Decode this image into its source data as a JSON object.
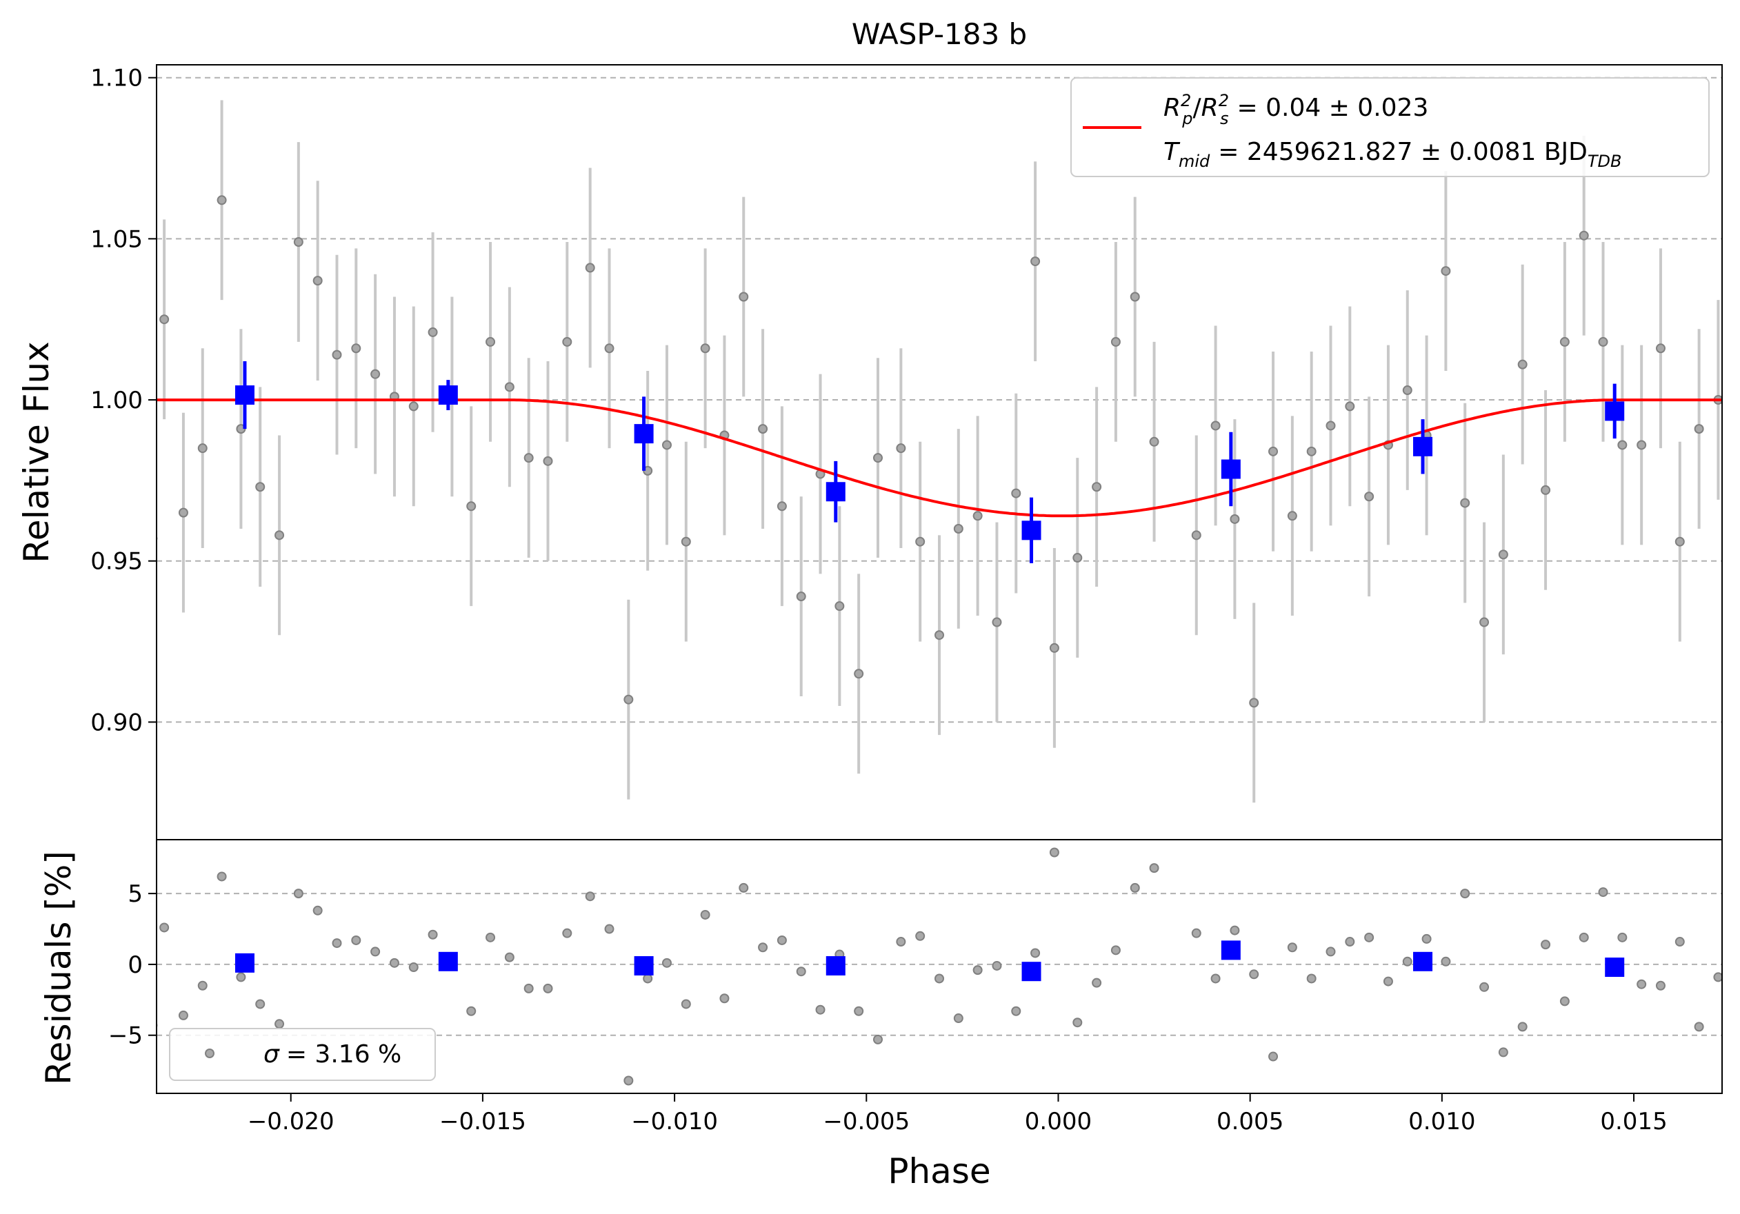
{
  "title": "WASP-183 b",
  "colors": {
    "raw_points": "#808080",
    "raw_errorbars": "#c8c8c8",
    "binned": "#0000ff",
    "model": "#ff0000",
    "grid": "#b0b0b0"
  },
  "chart_data": [
    {
      "type": "scatter",
      "panel": "top",
      "title": "WASP-183 b",
      "xlabel": "",
      "ylabel": "Relative Flux",
      "xlim": [
        -0.0235,
        0.0173
      ],
      "ylim": [
        0.8635,
        1.104
      ],
      "yticks": [
        0.9,
        0.95,
        1.0,
        1.05,
        1.1
      ],
      "ytick_labels": [
        "0.90",
        "0.95",
        "1.00",
        "1.05",
        "1.10"
      ],
      "grid": "y dashed",
      "legend": {
        "placement": "top-right",
        "line1_main": "R",
        "line1_p": "p",
        "line1_s": "s",
        "line1_sup": "2",
        "line1_value": "= 0.04 ± 0.023",
        "line2_main": "T",
        "line2_sub": "mid",
        "line2_value": "= 2459621.827 ± 0.0081 BJD",
        "line2_unit_sub": "TDB"
      },
      "series": [
        {
          "kind": "raw",
          "x": [
            -0.0236,
            -0.0233,
            -0.0228,
            -0.0223,
            -0.0218,
            -0.0213,
            -0.0208,
            -0.0203,
            -0.0198,
            -0.0193,
            -0.0188,
            -0.0183,
            -0.0178,
            -0.0173,
            -0.0168,
            -0.0163,
            -0.0158,
            -0.0153,
            -0.0148,
            -0.0143,
            -0.0138,
            -0.0133,
            -0.0128,
            -0.0122,
            -0.0117,
            -0.0112,
            -0.0107,
            -0.0102,
            -0.0097,
            -0.0092,
            -0.0087,
            -0.0082,
            -0.0077,
            -0.0072,
            -0.0067,
            -0.0062,
            -0.0057,
            -0.0052,
            -0.0047,
            -0.0041,
            -0.0036,
            -0.0031,
            -0.0026,
            -0.0021,
            -0.0016,
            -0.0011,
            -0.0006,
            -0.0001,
            0.0005,
            0.001,
            0.0015,
            0.002,
            0.0025,
            0.0036,
            0.0041,
            0.0046,
            0.0051,
            0.0056,
            0.0061,
            0.0066,
            0.0071,
            0.0076,
            0.0081,
            0.0086,
            0.0091,
            0.0096,
            0.0101,
            0.0106,
            0.0111,
            0.0116,
            0.0121,
            0.0127,
            0.0132,
            0.0137,
            0.0142,
            0.0147,
            0.0152,
            0.0157,
            0.0162,
            0.0167,
            0.0172
          ],
          "y": [
            0.957,
            1.025,
            0.965,
            0.985,
            1.062,
            0.991,
            0.973,
            0.958,
            1.049,
            1.037,
            1.014,
            1.016,
            1.008,
            1.001,
            0.998,
            1.021,
            1.001,
            0.967,
            1.018,
            1.004,
            0.982,
            0.981,
            1.018,
            1.041,
            1.016,
            0.907,
            0.978,
            0.986,
            0.956,
            1.016,
            0.989,
            1.032,
            0.991,
            0.967,
            0.939,
            0.977,
            0.936,
            0.915,
            0.982,
            0.985,
            0.956,
            0.927,
            0.96,
            0.964,
            0.931,
            0.971,
            1.043,
            0.923,
            0.951,
            0.973,
            1.018,
            1.032,
            0.987,
            0.958,
            0.992,
            0.963,
            0.906,
            0.984,
            0.964,
            0.984,
            0.992,
            0.998,
            0.97,
            0.986,
            1.003,
            0.989,
            1.04,
            0.968,
            0.931,
            0.952,
            1.011,
            0.972,
            1.018,
            1.051,
            1.018,
            0.986,
            0.986,
            1.016,
            0.956,
            0.991,
            1.0
          ],
          "err": 0.031
        },
        {
          "kind": "binned",
          "x": [
            -0.0212,
            -0.0159,
            -0.0108,
            -0.0058,
            -0.0007,
            0.0045,
            0.0095,
            0.0145
          ],
          "y": [
            1.0015,
            1.0015,
            0.9895,
            0.9715,
            0.9595,
            0.9785,
            0.9855,
            0.9965
          ],
          "err": [
            0.0105,
            0.0047,
            0.0115,
            0.0095,
            0.0102,
            0.0115,
            0.0085,
            0.0085
          ]
        },
        {
          "kind": "model",
          "name": "transit model",
          "depth": 0.036,
          "center": 0.0001,
          "half_width": 0.0145
        }
      ]
    },
    {
      "type": "scatter",
      "panel": "bottom",
      "xlabel": "Phase",
      "ylabel": "Residuals [%]",
      "xlim": [
        -0.0235,
        0.0173
      ],
      "ylim": [
        -9.1,
        8.8
      ],
      "yticks": [
        -5,
        0,
        5
      ],
      "ytick_labels": [
        "−5",
        "0",
        "5"
      ],
      "xticks": [
        -0.02,
        -0.015,
        -0.01,
        -0.005,
        0.0,
        0.005,
        0.01,
        0.015
      ],
      "xtick_labels": [
        "−0.020",
        "−0.015",
        "−0.010",
        "−0.005",
        "0.000",
        "0.005",
        "0.010",
        "0.015"
      ],
      "grid": "y dashed",
      "legend": {
        "placement": "bottom-left",
        "sigma_symbol": "σ",
        "sigma_value": "= 3.16 %"
      },
      "series": [
        {
          "kind": "raw_residuals",
          "y": [
            -4.3,
            2.6,
            -3.6,
            -1.5,
            6.2,
            -0.9,
            -2.8,
            -4.2,
            5.0,
            3.8,
            1.5,
            1.7,
            0.9,
            0.1,
            -0.2,
            2.1,
            0.1,
            -3.3,
            1.9,
            0.5,
            -1.7,
            -1.7,
            2.2,
            4.8,
            2.5,
            -8.2,
            -1.0,
            0.1,
            -2.8,
            3.5,
            -2.4,
            5.4,
            1.2,
            1.7,
            -0.5,
            -3.2,
            0.7,
            -3.3,
            -5.3,
            1.6,
            2.0,
            -1.0,
            -3.8,
            -0.4,
            -0.1,
            -3.3,
            0.8,
            7.9,
            -4.1,
            -1.3,
            1.0,
            5.4,
            6.8,
            2.2,
            -1.0,
            2.4,
            -0.7,
            -6.5,
            1.2,
            -1.0,
            0.9,
            1.6,
            1.9,
            -1.2,
            0.2,
            1.8,
            0.2,
            5.0,
            -1.6,
            -6.2,
            -4.4,
            1.4,
            -2.6,
            1.9,
            5.1,
            1.9,
            -1.4,
            -1.5,
            1.6,
            -4.4,
            -0.9
          ]
        },
        {
          "kind": "binned_residuals",
          "x": [
            -0.0212,
            -0.0159,
            -0.0108,
            -0.0058,
            -0.0007,
            0.0045,
            0.0095,
            0.0145
          ],
          "y": [
            0.1,
            0.2,
            -0.1,
            -0.1,
            -0.5,
            1.0,
            0.2,
            -0.2
          ]
        }
      ]
    }
  ]
}
